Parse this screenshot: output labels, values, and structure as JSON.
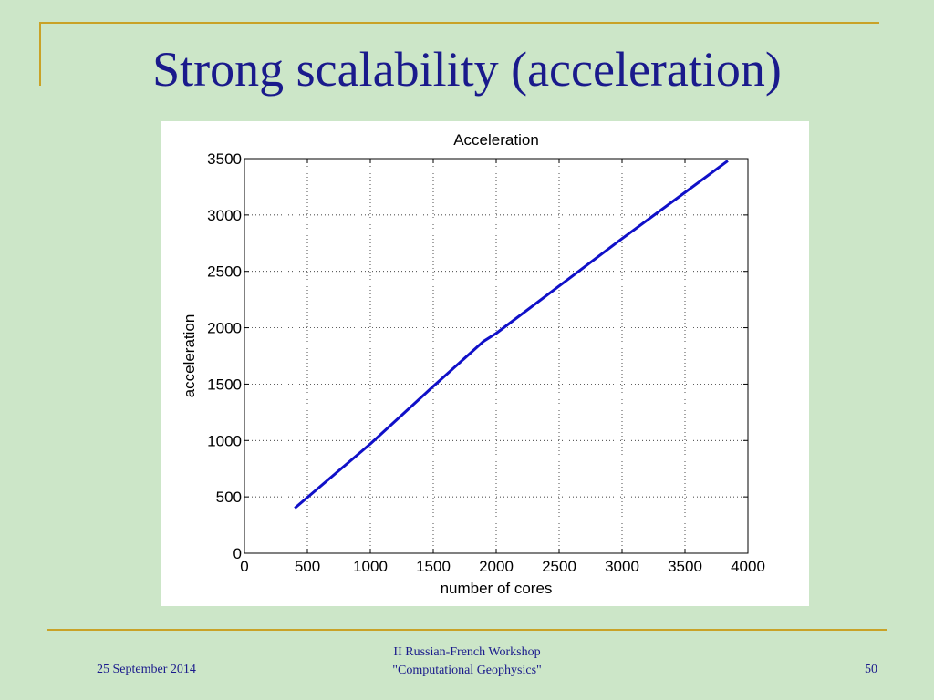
{
  "slide": {
    "title": "Strong scalability (acceleration)"
  },
  "footer": {
    "date": "25 September 2014",
    "workshop_line1": "II Russian-French Workshop",
    "workshop_line2": "\"Computational Geophysics\"",
    "page_number": "50"
  },
  "colors": {
    "background": "#cce6c8",
    "accent_lines": "#c9a227",
    "title_text": "#1a1a8c",
    "series_line": "#1010c8"
  },
  "chart_data": {
    "type": "line",
    "title": "Acceleration",
    "xlabel": "number of cores",
    "ylabel": "acceleration",
    "xlim": [
      0,
      4000
    ],
    "ylim": [
      0,
      3500
    ],
    "xticks": [
      0,
      500,
      1000,
      1500,
      2000,
      2500,
      3000,
      3500,
      4000
    ],
    "yticks": [
      0,
      500,
      1000,
      1500,
      2000,
      2500,
      3000,
      3500
    ],
    "grid": true,
    "series": [
      {
        "x": [
          400,
          1000,
          1500,
          1900,
          2000,
          2500,
          3000,
          3500,
          3840
        ],
        "y": [
          400,
          970,
          1480,
          1880,
          1950,
          2370,
          2790,
          3200,
          3480
        ]
      }
    ]
  }
}
